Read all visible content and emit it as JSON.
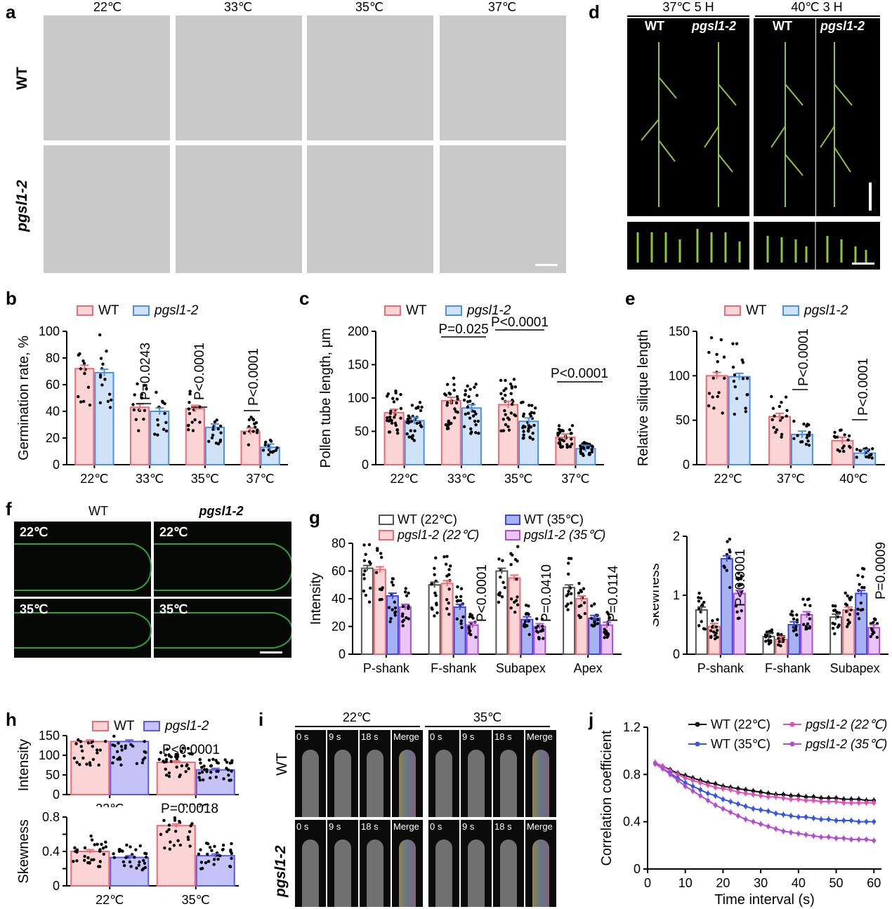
{
  "panel_a": {
    "label": "a",
    "temps": [
      "22℃",
      "33℃",
      "35℃",
      "37℃"
    ],
    "rows": [
      "WT",
      "pgsl1-2"
    ]
  },
  "panel_d": {
    "label": "d",
    "groups": [
      "37℃ 5 H",
      "40℃ 3 H"
    ],
    "genotypes": [
      "WT",
      "pgsl1-2",
      "WT",
      "pgsl1-2"
    ]
  },
  "panel_f": {
    "label": "f",
    "cols": [
      "WT",
      "pgsl1-2"
    ],
    "temps": [
      "22℃",
      "22℃",
      "35℃",
      "35℃"
    ]
  },
  "panel_i": {
    "label": "i",
    "temps": [
      "22℃",
      "35℃"
    ],
    "frames": [
      "0 s",
      "9 s",
      "18 s",
      "Merge"
    ],
    "rows": [
      "WT",
      "pgsl1-2"
    ]
  },
  "chart_data": [
    {
      "panel": "b",
      "type": "bar",
      "categories": [
        "22℃",
        "33℃",
        "35℃",
        "37℃"
      ],
      "series": [
        {
          "name": "WT",
          "values": [
            72,
            43,
            42,
            25
          ]
        },
        {
          "name": "pgsl1-2",
          "values": [
            69,
            40,
            28,
            13
          ]
        }
      ],
      "ylabel": "Germination rate, %",
      "ylim": [
        0,
        100
      ],
      "yticks": [
        0,
        20,
        40,
        60,
        80,
        100
      ],
      "annotations": [
        "P=0.0243",
        "P<0.0001",
        "P<0.0001"
      ]
    },
    {
      "panel": "c",
      "type": "bar",
      "categories": [
        "22℃",
        "33℃",
        "35℃",
        "37℃"
      ],
      "series": [
        {
          "name": "WT",
          "values": [
            78,
            96,
            90,
            41
          ]
        },
        {
          "name": "pgsl1-2",
          "values": [
            66,
            85,
            65,
            24
          ]
        }
      ],
      "ylabel": "Pollen tube length, μm",
      "ylim": [
        0,
        200
      ],
      "yticks": [
        0,
        50,
        100,
        150,
        200
      ],
      "annotations": [
        "P=0.025",
        "P<0.0001",
        "P<0.0001"
      ]
    },
    {
      "panel": "e",
      "type": "bar",
      "categories": [
        "22℃",
        "37℃",
        "40℃"
      ],
      "series": [
        {
          "name": "WT",
          "values": [
            100,
            54,
            27
          ]
        },
        {
          "name": "pgsl1-2",
          "values": [
            99,
            34,
            13
          ]
        }
      ],
      "ylabel": "Relative silique length",
      "ylim": [
        0,
        150
      ],
      "yticks": [
        0,
        50,
        100,
        150
      ],
      "annotations": [
        "P<0.0001",
        "P<0.0001"
      ]
    },
    {
      "panel": "g-intensity",
      "type": "bar",
      "categories": [
        "P-shank",
        "F-shank",
        "Subapex",
        "Apex"
      ],
      "series": [
        {
          "name": "WT (22℃)",
          "values": [
            62,
            50,
            60,
            48
          ]
        },
        {
          "name": "pgsl1-2 (22℃)",
          "values": [
            61,
            51,
            55,
            40
          ]
        },
        {
          "name": "WT (35℃)",
          "values": [
            42,
            34,
            25,
            26
          ]
        },
        {
          "name": "pgsl1-2 (35℃)",
          "values": [
            34,
            21,
            20,
            21
          ]
        }
      ],
      "ylabel": "Intensity",
      "ylim": [
        0,
        80
      ],
      "yticks": [
        0,
        20,
        40,
        60,
        80
      ],
      "annotations": [
        "P<0.0001",
        "P=0.0410",
        "P=0.0114"
      ]
    },
    {
      "panel": "g-skewness",
      "type": "bar",
      "categories": [
        "P-shank",
        "F-shank",
        "Subapex"
      ],
      "series": [
        {
          "name": "WT (22℃)",
          "values": [
            0.75,
            0.3,
            0.63
          ]
        },
        {
          "name": "pgsl1-2 (22℃)",
          "values": [
            0.47,
            0.25,
            0.75
          ]
        },
        {
          "name": "WT (35℃)",
          "values": [
            1.62,
            0.5,
            1.03
          ]
        },
        {
          "name": "pgsl1-2 (35℃)",
          "values": [
            1.03,
            0.67,
            0.45
          ]
        }
      ],
      "ylabel": "Skewness",
      "ylim": [
        0,
        2
      ],
      "yticks": [
        0,
        1,
        2
      ],
      "annotations": [
        "P<0.0001",
        "P=0.0009"
      ]
    },
    {
      "panel": "h-intensity",
      "type": "bar",
      "categories": [
        "22℃",
        "35℃"
      ],
      "series": [
        {
          "name": "WT",
          "values": [
            135,
            82
          ]
        },
        {
          "name": "pgsl1-2",
          "values": [
            135,
            63
          ]
        }
      ],
      "ylabel": "Intensity",
      "ylim": [
        0,
        150
      ],
      "yticks": [
        0,
        50,
        100,
        150
      ],
      "annotations": [
        "P<0.0001"
      ]
    },
    {
      "panel": "h-skewness",
      "type": "bar",
      "categories": [
        "22℃",
        "35℃"
      ],
      "series": [
        {
          "name": "WT",
          "values": [
            0.4,
            0.7
          ]
        },
        {
          "name": "pgsl1-2",
          "values": [
            0.33,
            0.35
          ]
        }
      ],
      "ylabel": "Skewness",
      "ylim": [
        0,
        0.8
      ],
      "yticks": [
        0,
        0.2,
        0.4,
        0.6,
        0.8
      ],
      "yticklabels": [
        "0",
        "0.4",
        "0.8"
      ],
      "annotations": [
        "P=0.0018"
      ]
    },
    {
      "panel": "j",
      "type": "line",
      "x": [
        2,
        4,
        6,
        8,
        10,
        12,
        14,
        16,
        18,
        20,
        22,
        24,
        26,
        28,
        30,
        32,
        34,
        36,
        38,
        40,
        42,
        44,
        46,
        48,
        50,
        52,
        54,
        56,
        58,
        60
      ],
      "series": [
        {
          "name": "WT (22℃)",
          "values": [
            0.9,
            0.87,
            0.84,
            0.81,
            0.79,
            0.77,
            0.75,
            0.73,
            0.72,
            0.7,
            0.69,
            0.68,
            0.67,
            0.66,
            0.65,
            0.64,
            0.63,
            0.63,
            0.62,
            0.62,
            0.61,
            0.61,
            0.6,
            0.6,
            0.6,
            0.59,
            0.59,
            0.59,
            0.58,
            0.58
          ]
        },
        {
          "name": "pgsl1-2 (22℃)",
          "values": [
            0.9,
            0.87,
            0.83,
            0.8,
            0.77,
            0.75,
            0.73,
            0.71,
            0.69,
            0.68,
            0.67,
            0.65,
            0.64,
            0.63,
            0.62,
            0.61,
            0.61,
            0.6,
            0.59,
            0.59,
            0.58,
            0.58,
            0.57,
            0.57,
            0.57,
            0.56,
            0.56,
            0.56,
            0.56,
            0.56
          ]
        },
        {
          "name": "WT (35℃)",
          "values": [
            0.89,
            0.85,
            0.81,
            0.77,
            0.73,
            0.7,
            0.67,
            0.64,
            0.62,
            0.59,
            0.57,
            0.55,
            0.53,
            0.51,
            0.5,
            0.49,
            0.47,
            0.46,
            0.45,
            0.44,
            0.44,
            0.43,
            0.42,
            0.42,
            0.41,
            0.41,
            0.41,
            0.4,
            0.4,
            0.4
          ]
        },
        {
          "name": "pgsl1-2 (35℃)",
          "values": [
            0.89,
            0.85,
            0.8,
            0.75,
            0.7,
            0.66,
            0.62,
            0.58,
            0.54,
            0.51,
            0.48,
            0.45,
            0.42,
            0.4,
            0.38,
            0.36,
            0.34,
            0.32,
            0.31,
            0.3,
            0.29,
            0.28,
            0.27,
            0.27,
            0.26,
            0.26,
            0.25,
            0.25,
            0.25,
            0.24
          ]
        }
      ],
      "xlabel": "Time interval (s)",
      "ylabel": "Correlation coefficient",
      "xlim": [
        0,
        62
      ],
      "ylim": [
        0,
        1.2
      ],
      "xticks": [
        0,
        10,
        20,
        30,
        40,
        50,
        60
      ],
      "yticks": [
        0,
        0.4,
        0.8,
        1.2
      ],
      "legend": "top-right"
    }
  ],
  "colors": {
    "wt": "#f06a72",
    "wt_fill": "#fbd5d6",
    "mut": "#4a90e8",
    "mut_fill": "#cfe2f8",
    "gray": "#555555",
    "pink": "#f06a72",
    "blue": "#3a46e8",
    "purple": "#b04ad8",
    "j_black": "#111111",
    "j_pink": "#e24fb6",
    "j_blue": "#3656e8",
    "j_purple": "#b24ad6"
  }
}
